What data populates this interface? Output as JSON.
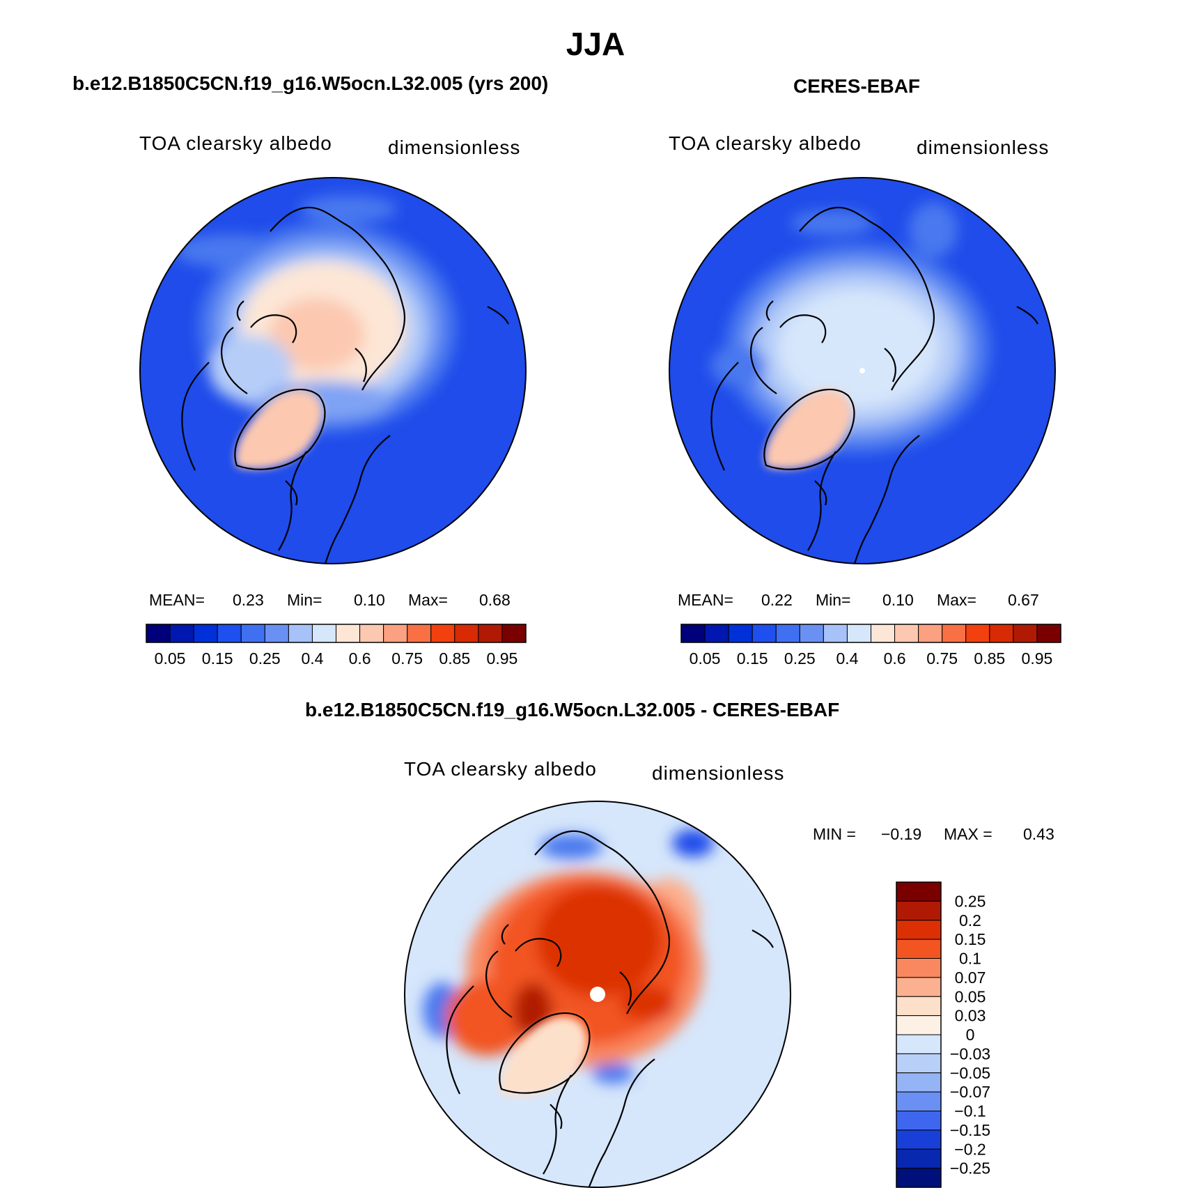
{
  "figure": {
    "title": "JJA"
  },
  "panels": [
    {
      "title": "b.e12.B1850C5CN.f19_g16.W5ocn.L32.005 (yrs 200)",
      "variable": "TOA clearsky albedo",
      "units": "dimensionless",
      "stats": {
        "mean_label": "MEAN=",
        "mean": "0.23",
        "min_label": "Min=",
        "min": "0.10",
        "max_label": "Max=",
        "max": "0.68"
      }
    },
    {
      "title": "CERES-EBAF",
      "variable": "TOA clearsky albedo",
      "units": "dimensionless",
      "stats": {
        "mean_label": "MEAN=",
        "mean": "0.22",
        "min_label": "Min=",
        "min": "0.10",
        "max_label": "Max=",
        "max": "0.67"
      }
    },
    {
      "title": "b.e12.B1850C5CN.f19_g16.W5ocn.L32.005 - CERES-EBAF",
      "variable": "TOA clearsky albedo",
      "units": "dimensionless",
      "stats": {
        "min_label": "MIN =",
        "min": "−0.19",
        "max_label": "MAX =",
        "max": "0.43"
      }
    }
  ],
  "colorbar_abs": {
    "colors": [
      "#00007a",
      "#0018b0",
      "#0030d8",
      "#1e4fef",
      "#4070f2",
      "#6a90f4",
      "#a6c2f8",
      "#d6e6fb",
      "#fde6d6",
      "#fcc8b0",
      "#fba080",
      "#f97045",
      "#f2400f",
      "#d82a04",
      "#b01a05",
      "#7a0000"
    ],
    "tick_labels": [
      "0.05",
      "0.15",
      "0.25",
      "0.4",
      "0.6",
      "0.75",
      "0.85",
      "0.95"
    ]
  },
  "colorbar_diff": {
    "colors_top_to_bottom": [
      "#7a0000",
      "#b01a05",
      "#dc3004",
      "#f25522",
      "#f98860",
      "#fbb090",
      "#fde0ca",
      "#fdf1e6",
      "#d6e6fb",
      "#b8d0f8",
      "#95b4f5",
      "#6a90f4",
      "#3e66ee",
      "#1840d8",
      "#0828b0",
      "#00107a"
    ],
    "tick_labels": [
      "0.25",
      "0.2",
      "0.15",
      "0.1",
      "0.07",
      "0.05",
      "0.03",
      "0",
      "−0.03",
      "−0.05",
      "−0.07",
      "−0.1",
      "−0.15",
      "−0.2",
      "−0.25"
    ]
  }
}
